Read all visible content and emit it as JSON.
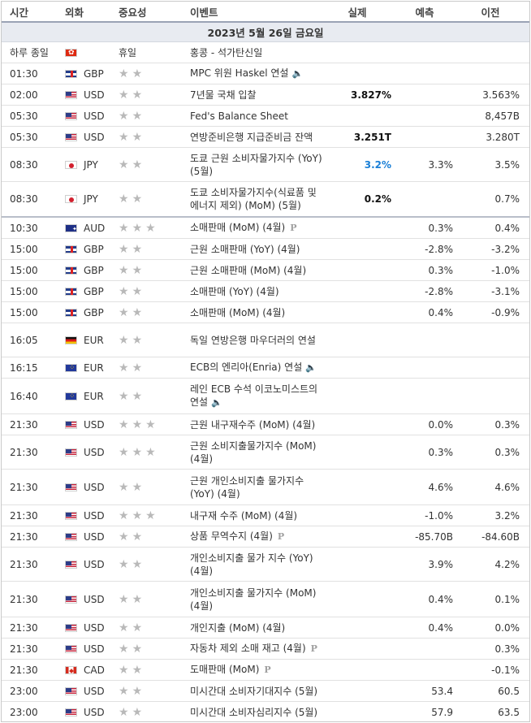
{
  "header": {
    "time": "시간",
    "currency": "외화",
    "importance": "중요성",
    "event": "이벤트",
    "actual": "실제",
    "forecast": "예측",
    "previous": "이전"
  },
  "date_label": "2023년 5월 26일 금요일",
  "rows": [
    {
      "time": "하루 종일",
      "flag": "hk",
      "cur": "",
      "stars": 0,
      "holiday": "휴일",
      "event": "홍콩 - 석가탄신일",
      "actual": "",
      "forecast": "",
      "previous": "",
      "h": 26
    },
    {
      "time": "01:30",
      "flag": "gb",
      "cur": "GBP",
      "stars": 2,
      "event": "MPC 위원 Haskel 연설",
      "speaker": true,
      "actual": "",
      "forecast": "",
      "previous": "",
      "h": 26
    },
    {
      "time": "02:00",
      "flag": "us",
      "cur": "USD",
      "stars": 2,
      "event": "7년물 국채 입찰",
      "actual": "3.827%",
      "forecast": "",
      "previous": "3.563%",
      "h": 26
    },
    {
      "time": "05:30",
      "flag": "us",
      "cur": "USD",
      "stars": 2,
      "event": "Fed's Balance Sheet",
      "actual": "",
      "forecast": "",
      "previous": "8,457B",
      "h": 26
    },
    {
      "time": "05:30",
      "flag": "us",
      "cur": "USD",
      "stars": 2,
      "event": "연방준비은행 지급준비금 잔액",
      "actual": "3.251T",
      "forecast": "",
      "previous": "3.280T",
      "h": 26
    },
    {
      "time": "08:30",
      "flag": "jp",
      "cur": "JPY",
      "stars": 2,
      "event": "도쿄 근원 소비자물가지수 (YoY) (5월)",
      "actual": "3.2%",
      "actual_blue": true,
      "forecast": "3.3%",
      "previous": "3.5%",
      "h": 42
    },
    {
      "time": "08:30",
      "flag": "jp",
      "cur": "JPY",
      "stars": 2,
      "event": "도쿄 소비자물가지수(식료품 및 에너지 제외) (MoM) (5월)",
      "actual": "0.2%",
      "forecast": "",
      "previous": "0.7%",
      "h": 44,
      "sep": true
    },
    {
      "time": "10:30",
      "flag": "au",
      "cur": "AUD",
      "stars": 3,
      "event": "소매판매 (MoM) (4월)",
      "pre": true,
      "actual": "",
      "forecast": "0.3%",
      "previous": "0.4%",
      "h": 26
    },
    {
      "time": "15:00",
      "flag": "gb",
      "cur": "GBP",
      "stars": 2,
      "event": "근원 소매판매 (YoY) (4월)",
      "actual": "",
      "forecast": "-2.8%",
      "previous": "-3.2%",
      "h": 26
    },
    {
      "time": "15:00",
      "flag": "gb",
      "cur": "GBP",
      "stars": 2,
      "event": "근원 소매판매 (MoM) (4월)",
      "actual": "",
      "forecast": "0.3%",
      "previous": "-1.0%",
      "h": 26
    },
    {
      "time": "15:00",
      "flag": "gb",
      "cur": "GBP",
      "stars": 2,
      "event": "소매판매 (YoY) (4월)",
      "actual": "",
      "forecast": "-2.8%",
      "previous": "-3.1%",
      "h": 26
    },
    {
      "time": "15:00",
      "flag": "gb",
      "cur": "GBP",
      "stars": 2,
      "event": "소매판매 (MoM) (4월)",
      "actual": "",
      "forecast": "0.4%",
      "previous": "-0.9%",
      "h": 26
    },
    {
      "time": "16:05",
      "flag": "de",
      "cur": "EUR",
      "stars": 2,
      "event": "독일 연방은행 마우더러의 연설",
      "actual": "",
      "forecast": "",
      "previous": "",
      "h": 42
    },
    {
      "time": "16:15",
      "flag": "eu",
      "cur": "EUR",
      "stars": 2,
      "event": "ECB의 엔리아(Enria) 연설",
      "speaker": true,
      "actual": "",
      "forecast": "",
      "previous": "",
      "h": 26
    },
    {
      "time": "16:40",
      "flag": "eu",
      "cur": "EUR",
      "stars": 2,
      "event": "레인 ECB 수석 이코노미스트의 연설",
      "speaker": true,
      "actual": "",
      "forecast": "",
      "previous": "",
      "h": 44
    },
    {
      "time": "21:30",
      "flag": "us",
      "cur": "USD",
      "stars": 3,
      "event": "근원 내구재수주 (MoM) (4월)",
      "actual": "",
      "forecast": "0.0%",
      "previous": "0.3%",
      "h": 26
    },
    {
      "time": "21:30",
      "flag": "us",
      "cur": "USD",
      "stars": 3,
      "event": "근원 소비지출물가지수 (MoM) (4월)",
      "actual": "",
      "forecast": "0.3%",
      "previous": "0.3%",
      "h": 42
    },
    {
      "time": "21:30",
      "flag": "us",
      "cur": "USD",
      "stars": 2,
      "event": "근원 개인소비지출 물가지수 (YoY) (4월)",
      "actual": "",
      "forecast": "4.6%",
      "previous": "4.6%",
      "h": 44
    },
    {
      "time": "21:30",
      "flag": "us",
      "cur": "USD",
      "stars": 3,
      "event": "내구재 수주 (MoM) (4월)",
      "actual": "",
      "forecast": "-1.0%",
      "previous": "3.2%",
      "h": 26
    },
    {
      "time": "21:30",
      "flag": "us",
      "cur": "USD",
      "stars": 2,
      "event": "상품 무역수지 (4월)",
      "pre": true,
      "actual": "",
      "forecast": "-85.70B",
      "previous": "-84.60B",
      "h": 26
    },
    {
      "time": "21:30",
      "flag": "us",
      "cur": "USD",
      "stars": 2,
      "event": "개인소비지출 물가 지수 (YoY) (4월)",
      "actual": "",
      "forecast": "3.9%",
      "previous": "4.2%",
      "h": 42
    },
    {
      "time": "21:30",
      "flag": "us",
      "cur": "USD",
      "stars": 2,
      "event": "개인소비지출 물가지수 (MoM) (4월)",
      "actual": "",
      "forecast": "0.4%",
      "previous": "0.1%",
      "h": 44
    },
    {
      "time": "21:30",
      "flag": "us",
      "cur": "USD",
      "stars": 2,
      "event": "개인지출 (MoM) (4월)",
      "actual": "",
      "forecast": "0.4%",
      "previous": "0.0%",
      "h": 26
    },
    {
      "time": "21:30",
      "flag": "us",
      "cur": "USD",
      "stars": 2,
      "event": "자동차 제외 소매 재고 (4월)",
      "pre": true,
      "actual": "",
      "forecast": "",
      "previous": "0.3%",
      "h": 26
    },
    {
      "time": "21:30",
      "flag": "ca",
      "cur": "CAD",
      "stars": 2,
      "event": "도매판매 (MoM)",
      "pre": true,
      "actual": "",
      "forecast": "",
      "previous": "-0.1%",
      "h": 26
    },
    {
      "time": "23:00",
      "flag": "us",
      "cur": "USD",
      "stars": 2,
      "event": "미시간대 소비자기대지수 (5월)",
      "actual": "",
      "forecast": "53.4",
      "previous": "60.5",
      "h": 26
    },
    {
      "time": "23:00",
      "flag": "us",
      "cur": "USD",
      "stars": 2,
      "event": "미시간대 소비자심리지수 (5월)",
      "actual": "",
      "forecast": "57.9",
      "previous": "63.5",
      "h": 26
    }
  ],
  "icons": {
    "star": "★",
    "speaker": "🔈",
    "preliminary": "P"
  }
}
